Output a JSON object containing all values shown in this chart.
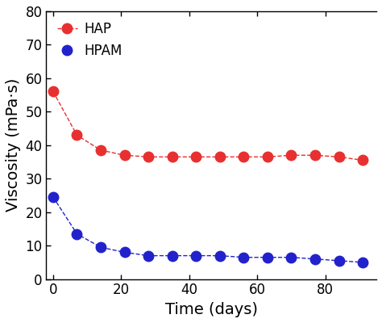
{
  "HAP": {
    "x": [
      0,
      7,
      14,
      21,
      28,
      35,
      42,
      49,
      56,
      63,
      70,
      77,
      84,
      91
    ],
    "y": [
      56,
      43,
      38.5,
      37,
      36.5,
      36.5,
      36.5,
      36.5,
      36.5,
      36.5,
      37,
      37,
      36.5,
      35.5
    ],
    "color": "#e83030",
    "label": "HAP",
    "linestyle": "--",
    "marker": "o",
    "markersize": 9
  },
  "HPAM": {
    "x": [
      0,
      7,
      14,
      21,
      28,
      35,
      42,
      49,
      56,
      63,
      70,
      77,
      84,
      91
    ],
    "y": [
      24.5,
      13.5,
      9.5,
      8,
      7,
      7,
      7,
      7,
      6.5,
      6.5,
      6.5,
      6,
      5.5,
      5
    ],
    "color": "#2222cc",
    "label": "HPAM",
    "linestyle": "--",
    "marker": "o",
    "markersize": 9
  },
  "xlabel": "Time (days)",
  "ylabel": "Viscosity (mPa·s)",
  "xlim": [
    -2,
    95
  ],
  "ylim": [
    0,
    80
  ],
  "xticks": [
    0,
    20,
    40,
    60,
    80
  ],
  "yticks": [
    0,
    10,
    20,
    30,
    40,
    50,
    60,
    70,
    80
  ],
  "legend_loc": "upper left",
  "legend_fontsize": 12,
  "axis_label_fontsize": 14,
  "tick_fontsize": 12,
  "background_color": "#ffffff",
  "spine_color": "#000000",
  "figsize": [
    4.74,
    4.0
  ],
  "dpi": 100
}
